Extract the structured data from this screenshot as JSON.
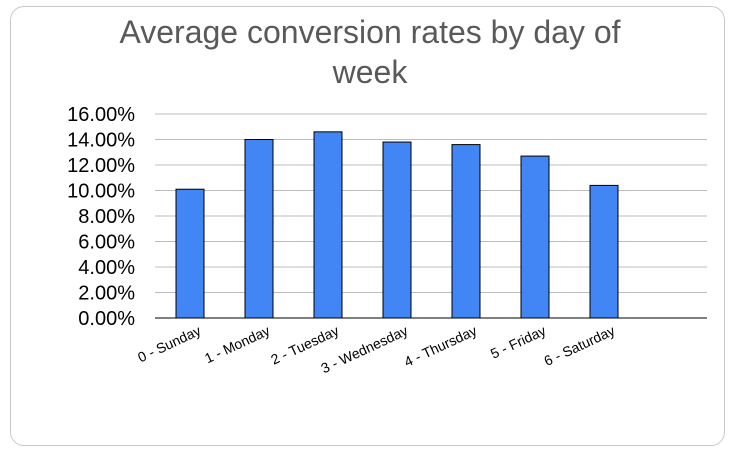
{
  "chart_data": {
    "type": "bar",
    "title": "Average conversion rates by day of week",
    "categories": [
      "0 - Sunday",
      "1 - Monday",
      "2 - Tuesday",
      "3 - Wednesday",
      "4 - Thursday",
      "5 - Friday",
      "6 - Saturday"
    ],
    "values": [
      10.1,
      14.0,
      14.6,
      13.8,
      13.6,
      12.7,
      10.4
    ],
    "ylim": [
      0,
      16
    ],
    "yticks": [
      "0.00%",
      "2.00%",
      "4.00%",
      "6.00%",
      "8.00%",
      "10.00%",
      "12.00%",
      "14.00%",
      "16.00%"
    ],
    "grid": true,
    "bar_color": "#4285f4",
    "bar_outline": "#000000",
    "grid_color": "#bdbdbd"
  }
}
